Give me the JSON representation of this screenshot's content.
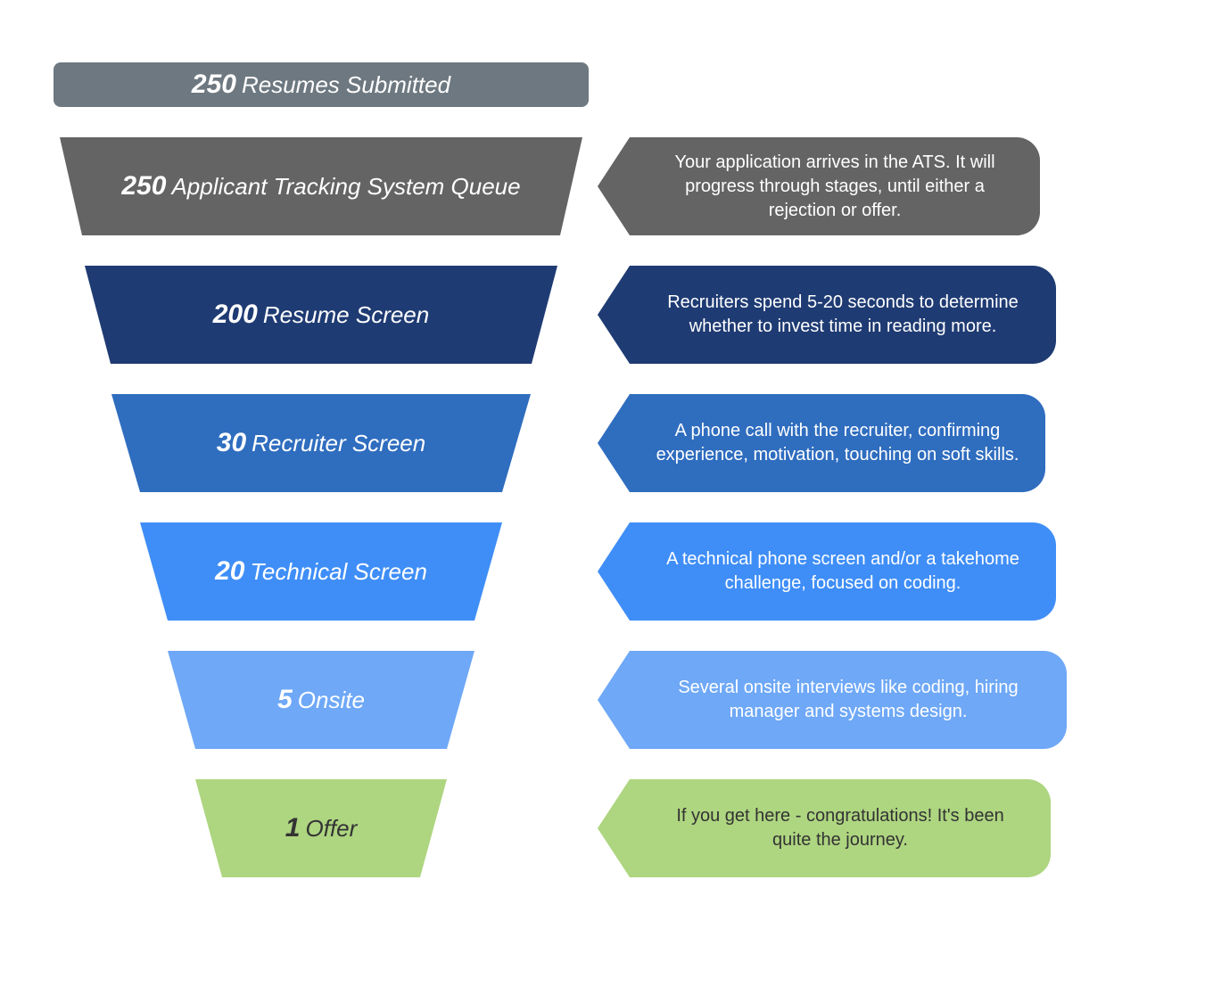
{
  "diagram": {
    "type": "funnel",
    "background_color": "#ffffff",
    "text_color": "#ffffff",
    "count_fontsize": 30,
    "label_fontsize": 26,
    "callout_fontsize": 20,
    "header": {
      "count": "250",
      "label": "Resumes Submitted",
      "color": "#6d7880",
      "height": 50,
      "top_width": 600,
      "bottom_width": 600,
      "border_radius": 8
    },
    "stages": [
      {
        "count": "250",
        "label": "Applicant Tracking System Queue",
        "color": "#646464",
        "top_width": 586,
        "bottom_width": 536,
        "callout": "Your application  arrives in the ATS. It will progress through stages, until either a rejection or offer.",
        "callout_width": 460
      },
      {
        "count": "200",
        "label": "Resume Screen",
        "color": "#1f3b73",
        "top_width": 530,
        "bottom_width": 472,
        "callout": "Recruiters spend 5-20 seconds to determine whether to invest time in reading more.",
        "callout_width": 478
      },
      {
        "count": "30",
        "label": "Recruiter Screen",
        "color": "#2f6dbf",
        "top_width": 470,
        "bottom_width": 406,
        "callout": "A phone call with the recruiter, confirming experience, motivation, touching on soft skills.",
        "callout_width": 466
      },
      {
        "count": "20",
        "label": "Technical Screen",
        "color": "#3f8ef7",
        "top_width": 406,
        "bottom_width": 344,
        "callout": "A technical phone screen and/or a takehome challenge, focused on coding.",
        "callout_width": 478
      },
      {
        "count": "5",
        "label": "Onsite",
        "color": "#6ea8f7",
        "top_width": 344,
        "bottom_width": 282,
        "callout": "Several onsite interviews like coding, hiring manager and systems design.",
        "callout_width": 490
      },
      {
        "count": "1",
        "label": "Offer",
        "color": "#aed580",
        "dark_text": true,
        "top_width": 282,
        "bottom_width": 222,
        "callout": "If you get here - congratulations! It's been quite the journey.",
        "callout_width": 472
      }
    ]
  }
}
